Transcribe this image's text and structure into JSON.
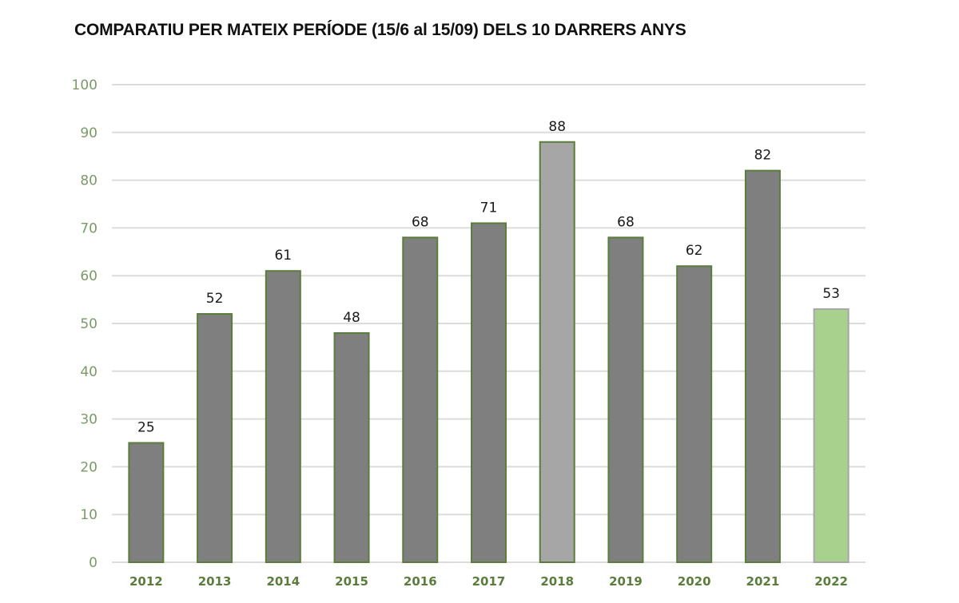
{
  "chart_data": {
    "type": "bar",
    "title": "COMPARATIU PER MATEIX PERÍODE (15/6 al 15/09) DELS 10 DARRERS ANYS",
    "xlabel": "",
    "ylabel": "",
    "categories": [
      "2012",
      "2013",
      "2014",
      "2015",
      "2016",
      "2017",
      "2018",
      "2019",
      "2020",
      "2021",
      "2022"
    ],
    "values": [
      25,
      52,
      61,
      48,
      68,
      71,
      88,
      68,
      62,
      82,
      53
    ],
    "data_labels": [
      "25",
      "52",
      "61",
      "48",
      "68",
      "71",
      "88",
      "68",
      "62",
      "82",
      "53"
    ],
    "ylim": [
      0,
      100
    ],
    "yticks": [
      0,
      10,
      20,
      30,
      40,
      50,
      60,
      70,
      80,
      90,
      100
    ],
    "grid": true,
    "legend": "none",
    "bar_colors": [
      "#7f7f7f",
      "#7f7f7f",
      "#7f7f7f",
      "#7f7f7f",
      "#7f7f7f",
      "#7f7f7f",
      "#a6a6a6",
      "#7f7f7f",
      "#7f7f7f",
      "#7f7f7f",
      "#a9d18e"
    ],
    "bar_border_colors": [
      "#5a7d3c",
      "#5a7d3c",
      "#5a7d3c",
      "#5a7d3c",
      "#5a7d3c",
      "#5a7d3c",
      "#5a7d3c",
      "#5a7d3c",
      "#5a7d3c",
      "#5a7d3c",
      "#a6a6a6"
    ]
  }
}
